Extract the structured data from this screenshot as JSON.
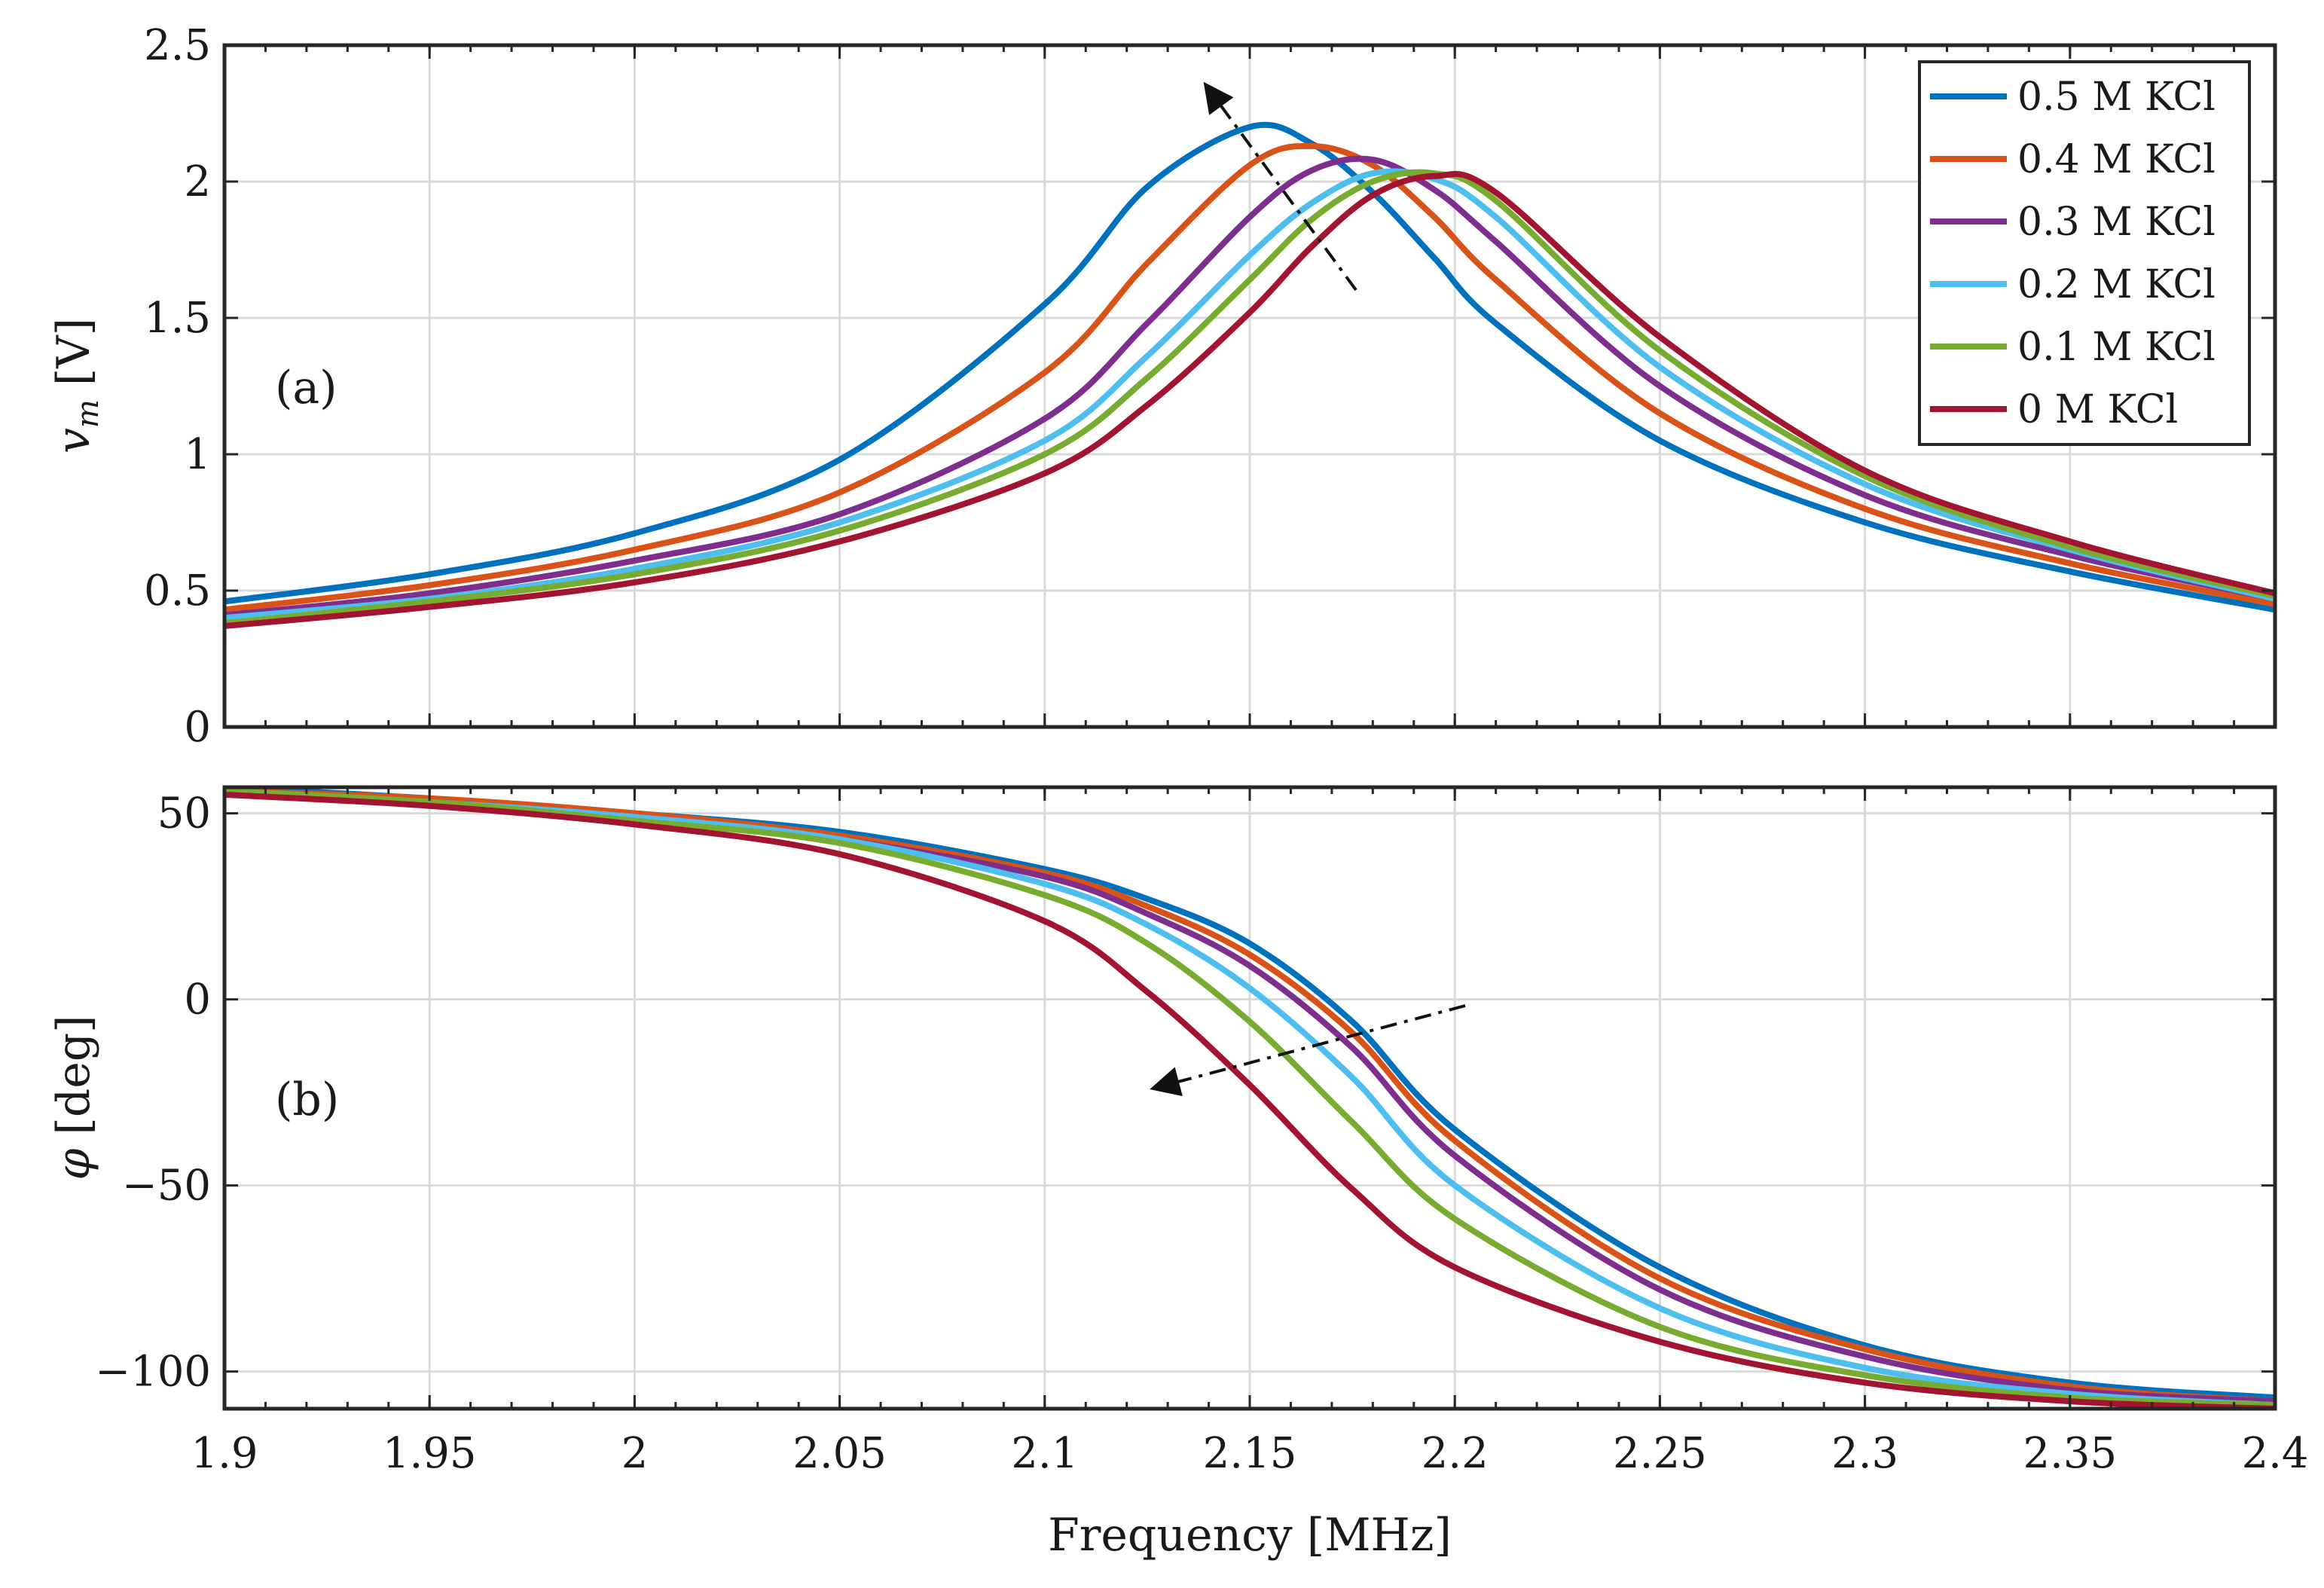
{
  "chart_data": [
    {
      "type": "line",
      "panel_label": "(a)",
      "xlabel": "",
      "ylabel_var": "v",
      "ylabel_sub": "m",
      "ylabel_unit": "[V]",
      "xlim": [
        1.9,
        2.4
      ],
      "ylim": [
        0,
        2.5
      ],
      "xticks": [
        1.9,
        1.95,
        2,
        2.05,
        2.1,
        2.15,
        2.2,
        2.25,
        2.3,
        2.35,
        2.4
      ],
      "yticks": [
        0,
        0.5,
        1,
        1.5,
        2,
        2.5
      ],
      "ytick_labels": [
        "0",
        "0.5",
        "1",
        "1.5",
        "2",
        "2.5"
      ],
      "grid": true,
      "legend_position": "top-right",
      "annotation": "dash-dot arrow pointing up-left across peaks",
      "x": [
        1.9,
        1.95,
        2.0,
        2.05,
        2.1,
        2.125,
        2.15,
        2.165,
        2.18,
        2.195,
        2.21,
        2.25,
        2.3,
        2.35,
        2.4
      ],
      "series": [
        {
          "name": "0.5 M KCl",
          "color": "#0072BD",
          "values": [
            0.46,
            0.56,
            0.71,
            0.98,
            1.55,
            1.98,
            2.2,
            2.14,
            1.96,
            1.72,
            1.48,
            1.05,
            0.75,
            0.57,
            0.43
          ]
        },
        {
          "name": "0.4 M KCl",
          "color": "#D95319",
          "values": [
            0.43,
            0.52,
            0.65,
            0.86,
            1.3,
            1.7,
            2.06,
            2.13,
            2.06,
            1.87,
            1.64,
            1.15,
            0.8,
            0.6,
            0.45
          ]
        },
        {
          "name": "0.3 M KCl",
          "color": "#7E2F8E",
          "values": [
            0.41,
            0.49,
            0.61,
            0.78,
            1.13,
            1.48,
            1.87,
            2.04,
            2.08,
            1.97,
            1.78,
            1.25,
            0.85,
            0.63,
            0.47
          ]
        },
        {
          "name": "0.2 M KCl",
          "color": "#4DBEEE",
          "values": [
            0.4,
            0.47,
            0.58,
            0.75,
            1.05,
            1.36,
            1.73,
            1.92,
            2.03,
            2.01,
            1.87,
            1.32,
            0.89,
            0.65,
            0.47
          ]
        },
        {
          "name": "0.1 M KCl",
          "color": "#77AC30",
          "values": [
            0.38,
            0.46,
            0.56,
            0.72,
            1.0,
            1.28,
            1.64,
            1.86,
            2.0,
            2.03,
            1.93,
            1.38,
            0.92,
            0.66,
            0.48
          ]
        },
        {
          "name": "0 M KCl",
          "color": "#A2142F",
          "values": [
            0.37,
            0.44,
            0.53,
            0.68,
            0.93,
            1.18,
            1.52,
            1.76,
            1.95,
            2.02,
            1.96,
            1.43,
            0.94,
            0.68,
            0.49
          ]
        }
      ]
    },
    {
      "type": "line",
      "panel_label": "(b)",
      "xlabel": "Frequency [MHz]",
      "ylabel_var": "φ",
      "ylabel_unit": "[deg]",
      "xlim": [
        1.9,
        2.4
      ],
      "ylim": [
        -110,
        57
      ],
      "xticks": [
        1.9,
        1.95,
        2,
        2.05,
        2.1,
        2.15,
        2.2,
        2.25,
        2.3,
        2.35,
        2.4
      ],
      "xtick_labels": [
        "1.9",
        "1.95",
        "2",
        "2.05",
        "2.1",
        "2.15",
        "2.2",
        "2.25",
        "2.3",
        "2.35",
        "2.4"
      ],
      "yticks": [
        -100,
        -50,
        0,
        50
      ],
      "ytick_labels": [
        "−100",
        "−50",
        "0",
        "50"
      ],
      "grid": true,
      "annotation": "dash-dot arrow pointing down-left across curves",
      "x": [
        1.9,
        1.95,
        2.0,
        2.05,
        2.1,
        2.125,
        2.15,
        2.175,
        2.2,
        2.25,
        2.3,
        2.35,
        2.4
      ],
      "series": [
        {
          "name": "0.5 M KCl",
          "color": "#0072BD",
          "values": [
            57,
            54,
            50,
            45,
            35,
            27,
            15,
            -6,
            -35,
            -72,
            -93,
            -103,
            -107
          ]
        },
        {
          "name": "0.4 M KCl",
          "color": "#D95319",
          "values": [
            56,
            54,
            50,
            44,
            34,
            25,
            12,
            -9,
            -38,
            -75,
            -94,
            -104,
            -108
          ]
        },
        {
          "name": "0.3 M KCl",
          "color": "#7E2F8E",
          "values": [
            56,
            53,
            49,
            43,
            33,
            23,
            9,
            -13,
            -42,
            -78,
            -96,
            -105,
            -108
          ]
        },
        {
          "name": "0.2 M KCl",
          "color": "#4DBEEE",
          "values": [
            56,
            53,
            49,
            43,
            31,
            20,
            3,
            -21,
            -50,
            -83,
            -99,
            -106,
            -109
          ]
        },
        {
          "name": "0.1 M KCl",
          "color": "#77AC30",
          "values": [
            56,
            53,
            48,
            42,
            28,
            15,
            -6,
            -33,
            -59,
            -88,
            -101,
            -107,
            -109
          ]
        },
        {
          "name": "0 M KCl",
          "color": "#A2142F",
          "values": [
            55,
            52,
            47,
            39,
            21,
            2,
            -23,
            -51,
            -72,
            -92,
            -103,
            -108,
            -110
          ]
        }
      ]
    }
  ]
}
